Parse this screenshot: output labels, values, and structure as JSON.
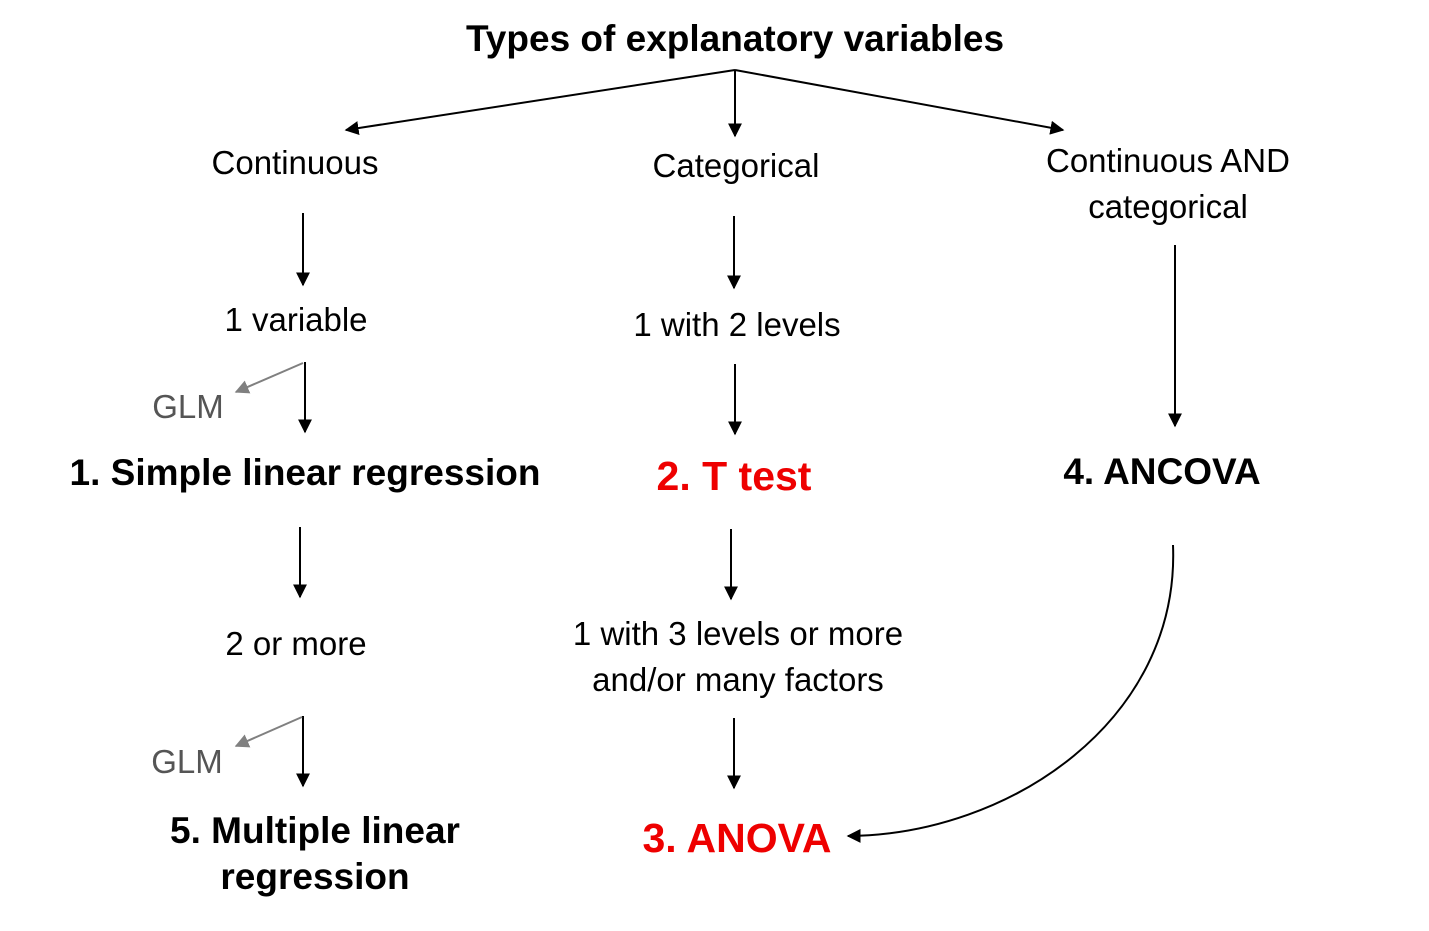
{
  "title": "Types of explanatory variables",
  "columns": {
    "continuous": {
      "label": "Continuous",
      "one_variable": "1 variable",
      "glm_1": "GLM",
      "result_1": "1. Simple linear regression",
      "two_or_more": "2 or more",
      "glm_2": "GLM",
      "result_5": "5. Multiple linear\nregression"
    },
    "categorical": {
      "label": "Categorical",
      "one_with_2": "1 with 2 levels",
      "result_2": "2. T test",
      "one_with_3": "1 with 3 levels or more\nand/or many factors",
      "result_3": "3. ANOVA"
    },
    "both": {
      "label": "Continuous AND\ncategorical",
      "result_4": "4. ANCOVA"
    }
  },
  "colors": {
    "highlight": "#ee0000",
    "glm_text": "#555555",
    "glm_arrow": "#808080",
    "arrow": "#000000"
  }
}
